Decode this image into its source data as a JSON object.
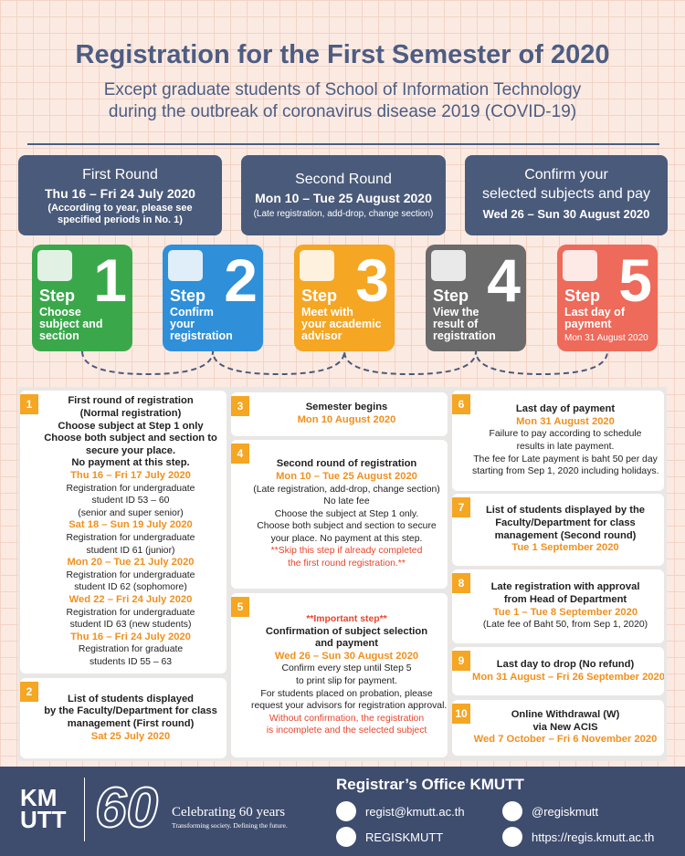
{
  "header": {
    "title": "Registration for the First Semester of 2020",
    "subtitle_lines": [
      "Except graduate students of School of Information Technology",
      "during the outbreak of coronavirus disease 2019 (COVID-19)"
    ]
  },
  "rounds": [
    {
      "lines": [
        {
          "text": "First Round",
          "style": "title"
        },
        {
          "text": "Thu 16 – Fri 24 July 2020",
          "style": "date"
        },
        {
          "text": "(According to year,  please see",
          "style": "note"
        },
        {
          "text": "specified periods in No. 1)",
          "style": "note"
        }
      ]
    },
    {
      "lines": [
        {
          "text": "Second Round",
          "style": "title"
        },
        {
          "text": "Mon 10 – Tue 25 August 2020",
          "style": "date"
        },
        {
          "text": "(Late registration, add-drop, change section)",
          "style": "small"
        }
      ]
    },
    {
      "lines": [
        {
          "text": "Confirm your",
          "style": "title"
        },
        {
          "text": "selected subjects and pay",
          "style": "title"
        },
        {
          "text": "Wed 26 – Sun 30 August 2020",
          "style": "date2"
        }
      ]
    }
  ],
  "steps": [
    {
      "number": "1",
      "word": "Step",
      "color": "#3aa84a",
      "lines": [
        "Choose",
        "subject and",
        "section"
      ]
    },
    {
      "number": "2",
      "word": "Step",
      "color": "#2f8fd8",
      "lines": [
        "Confirm",
        "your",
        "registration"
      ]
    },
    {
      "number": "3",
      "word": "Step",
      "color": "#f5a623",
      "lines": [
        "Meet with",
        "your academic",
        "advisor"
      ]
    },
    {
      "number": "4",
      "word": "Step",
      "color": "#6b6b6b",
      "lines": [
        "View the",
        "result of",
        "registration"
      ]
    },
    {
      "number": "5",
      "word": "Step",
      "color": "#ee6a5a",
      "lines": [
        "Last day of",
        "payment"
      ],
      "note": "Mon 31 August 2020"
    }
  ],
  "items": [
    {
      "number": "1",
      "lines": [
        {
          "text": "First round of registration",
          "style": "bold"
        },
        {
          "text": "(Normal registration)",
          "style": "bold"
        },
        {
          "text": "Choose subject at Step 1 only",
          "style": "bold"
        },
        {
          "text": "Choose both subject and section to",
          "style": "bold"
        },
        {
          "text": "secure your place.",
          "style": "bold"
        },
        {
          "text": "No payment at this step.",
          "style": "bold"
        },
        {
          "text": "Thu 16 – Fri 17 July 2020",
          "style": "orange"
        },
        {
          "text": "Registration for undergraduate",
          "style": "normal"
        },
        {
          "text": "student ID 53 – 60",
          "style": "normal"
        },
        {
          "text": "(senior and super senior)",
          "style": "normal"
        },
        {
          "text": "Sat 18 – Sun 19 July 2020",
          "style": "orange"
        },
        {
          "text": "Registration for undergraduate",
          "style": "normal"
        },
        {
          "text": "student ID 61 (junior)",
          "style": "normal"
        },
        {
          "text": "Mon 20 – Tue 21 July 2020",
          "style": "orange"
        },
        {
          "text": "Registration for undergraduate",
          "style": "normal"
        },
        {
          "text": "student ID 62 (sophomore)",
          "style": "normal"
        },
        {
          "text": "Wed 22 – Fri 24 July 2020",
          "style": "orange"
        },
        {
          "text": "Registration for undergraduate",
          "style": "normal"
        },
        {
          "text": "student ID 63 (new students)",
          "style": "normal"
        },
        {
          "text": "Thu 16 – Fri 24 July 2020",
          "style": "orange"
        },
        {
          "text": "Registration for graduate",
          "style": "normal"
        },
        {
          "text": "students ID 55 – 63",
          "style": "normal"
        }
      ]
    },
    {
      "number": "2",
      "lines": [
        {
          "text": "List of students displayed",
          "style": "bold"
        },
        {
          "text": "by the Faculty/Department for class",
          "style": "bold"
        },
        {
          "text": "management (First round)",
          "style": "bold"
        },
        {
          "text": "Sat 25 July 2020",
          "style": "orange"
        }
      ]
    },
    {
      "number": "3",
      "lines": [
        {
          "text": "Semester begins",
          "style": "bold"
        },
        {
          "text": "Mon 10 August 2020",
          "style": "orange"
        }
      ]
    },
    {
      "number": "4",
      "lines": [
        {
          "text": "Second round of registration",
          "style": "bold"
        },
        {
          "text": "Mon 10 – Tue 25 August 2020",
          "style": "orange"
        },
        {
          "text": "(Late registration, add-drop, change section)",
          "style": "normal"
        },
        {
          "text": "No late fee",
          "style": "normal"
        },
        {
          "text": "Choose the subject at Step 1 only.",
          "style": "normal"
        },
        {
          "text": "Choose both subject and section to secure",
          "style": "normal"
        },
        {
          "text": "your place. No payment at this step.",
          "style": "normal"
        },
        {
          "text": "**Skip this step if already completed",
          "style": "red"
        },
        {
          "text": "the first round registration.**",
          "style": "red"
        }
      ]
    },
    {
      "number": "5",
      "lines": [
        {
          "text": "**Important step**",
          "style": "redbold"
        },
        {
          "text": "Confirmation of subject selection",
          "style": "bold"
        },
        {
          "text": "and payment",
          "style": "bold"
        },
        {
          "text": "Wed 26 – Sun 30 August 2020",
          "style": "orange"
        },
        {
          "text": "Confirm every step until Step 5",
          "style": "normal"
        },
        {
          "text": "to print slip for payment.",
          "style": "normal"
        },
        {
          "text": "For students placed on probation, please",
          "style": "normal"
        },
        {
          "text": "request your advisors for registration approval.",
          "style": "normal"
        },
        {
          "text": "Without confirmation, the registration",
          "style": "red"
        },
        {
          "text": "is incomplete and the selected subject",
          "style": "red"
        }
      ]
    },
    {
      "number": "6",
      "lines": [
        {
          "text": "Last day of payment",
          "style": "bold"
        },
        {
          "text": "Mon 31 August 2020",
          "style": "orange"
        },
        {
          "text": "Failure to pay according to schedule",
          "style": "normal"
        },
        {
          "text": "results in late payment.",
          "style": "normal"
        },
        {
          "text": "The fee for Late payment is baht 50 per day",
          "style": "normal"
        },
        {
          "text": "starting from Sep 1, 2020 including holidays.",
          "style": "normal"
        }
      ]
    },
    {
      "number": "7",
      "lines": [
        {
          "text": "List of students displayed by the",
          "style": "bold"
        },
        {
          "text": "Faculty/Department for class",
          "style": "bold"
        },
        {
          "text": "management (Second round)",
          "style": "bold"
        },
        {
          "text": "Tue 1 September 2020",
          "style": "orange"
        }
      ]
    },
    {
      "number": "8",
      "lines": [
        {
          "text": "Late registration with approval",
          "style": "bold"
        },
        {
          "text": "from Head of Department",
          "style": "bold"
        },
        {
          "text": "Tue 1 – Tue 8 September 2020",
          "style": "orange"
        },
        {
          "text": "(Late fee of Baht 50, from Sep 1, 2020)",
          "style": "normal"
        }
      ]
    },
    {
      "number": "9",
      "lines": [
        {
          "text": "Last day to drop (No refund)",
          "style": "bold"
        },
        {
          "text": "Mon 31 August – Fri 26 September 2020",
          "style": "orange"
        }
      ]
    },
    {
      "number": "10",
      "lines": [
        {
          "text": "Online Withdrawal (W)",
          "style": "bold"
        },
        {
          "text": "via New ACIS",
          "style": "bold"
        },
        {
          "text": "Wed 7 October – Fri 6 November 2020",
          "style": "orange"
        }
      ]
    }
  ],
  "footer": {
    "logo_top": "KM",
    "logo_bottom": "UTT",
    "anniversary": "60",
    "celebrating": "Celebrating 60 years",
    "tagline": "Transforming society. Defining the future.",
    "office": "Registrar’s Office KMUTT",
    "email": "regist@kmutt.ac.th",
    "line": "@regiskmutt",
    "facebook": "REGISKMUTT",
    "website": "https://regis.kmutt.ac.th"
  }
}
